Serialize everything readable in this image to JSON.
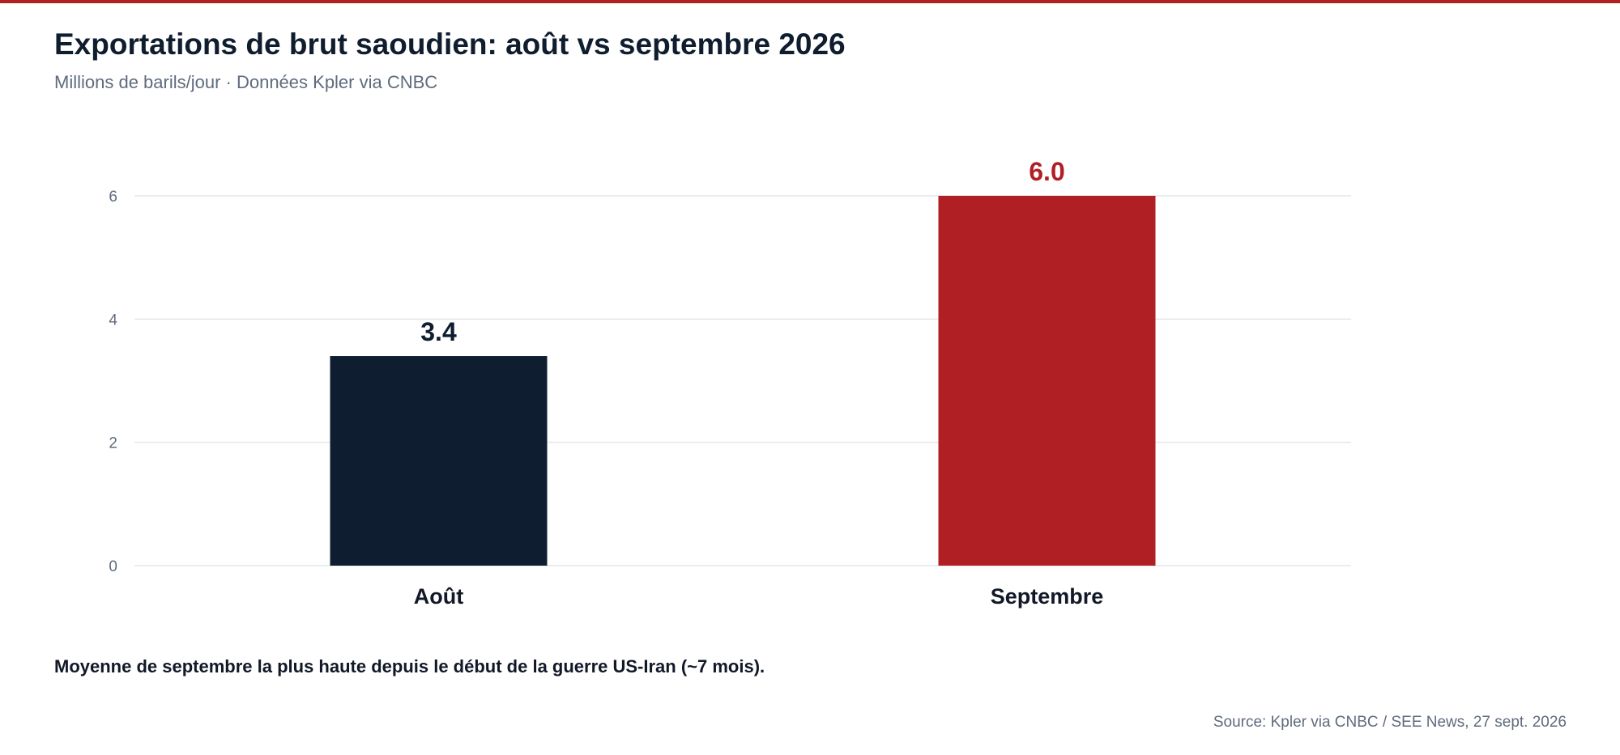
{
  "header": {
    "title": "Exportations de brut saoudien: août vs septembre 2026",
    "subtitle": "Millions de barils/jour · Données Kpler via CNBC"
  },
  "chart_data": {
    "type": "bar",
    "categories": [
      "Août",
      "Septembre"
    ],
    "values": [
      3.4,
      6.0
    ],
    "value_labels": [
      "3.4",
      "6.0"
    ],
    "bar_colors": [
      "#0e1e30",
      "#b01f24"
    ],
    "label_colors": [
      "#0e1e30",
      "#b01f24"
    ],
    "yticks": [
      "0",
      "2",
      "4",
      "6"
    ],
    "ylim": [
      0,
      6
    ],
    "grid": true,
    "title": "Exportations de brut saoudien: août vs septembre 2026",
    "xlabel": "",
    "ylabel": ""
  },
  "footer": {
    "note": "Moyenne de septembre la plus haute depuis le début de la guerre US-Iran (~7 mois).",
    "source": "Source: Kpler via CNBC / SEE News, 27 sept. 2026"
  },
  "colors": {
    "accent": "#b01f24",
    "dark": "#0e1e30",
    "grid": "#e3e7ec",
    "muted": "#5f6b7d"
  }
}
